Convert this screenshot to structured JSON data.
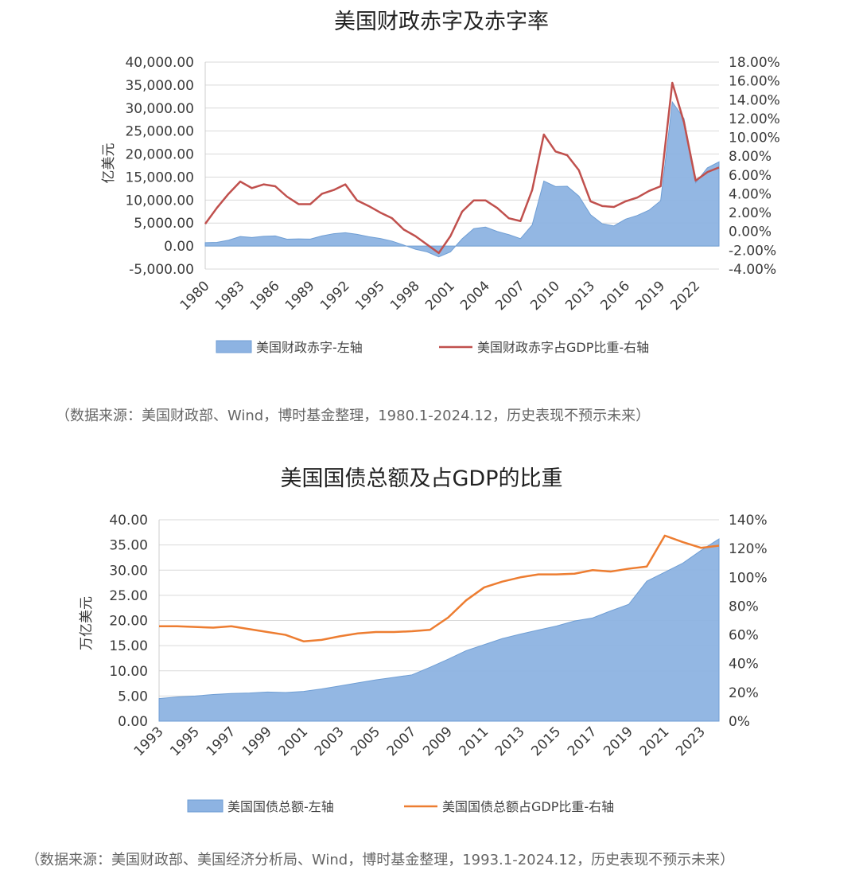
{
  "chart_data": [
    {
      "type": "area",
      "title": "美国财政赤字及赤字率",
      "ylabel": "亿美元",
      "y2label": "",
      "ylim": [
        -5000,
        40000
      ],
      "y2lim": [
        -4,
        18
      ],
      "yticks": [
        "40,000.00",
        "35,000.00",
        "30,000.00",
        "25,000.00",
        "20,000.00",
        "15,000.00",
        "10,000.00",
        "5,000.00",
        "0.00",
        "-5,000.00"
      ],
      "y2ticks": [
        "18.00%",
        "16.00%",
        "14.00%",
        "12.00%",
        "10.00%",
        "8.00%",
        "6.00%",
        "4.00%",
        "2.00%",
        "0.00%",
        "-2.00%",
        "-4.00%"
      ],
      "xtick_labels": [
        "1980",
        "1983",
        "1986",
        "1989",
        "1992",
        "1995",
        "1998",
        "2001",
        "2004",
        "2007",
        "2010",
        "2013",
        "2016",
        "2019",
        "2022"
      ],
      "x": [
        1980,
        1981,
        1982,
        1983,
        1984,
        1985,
        1986,
        1987,
        1988,
        1989,
        1990,
        1991,
        1992,
        1993,
        1994,
        1995,
        1996,
        1997,
        1998,
        1999,
        2000,
        2001,
        2002,
        2003,
        2004,
        2005,
        2006,
        2007,
        2008,
        2009,
        2010,
        2011,
        2012,
        2013,
        2014,
        2015,
        2016,
        2017,
        2018,
        2019,
        2020,
        2021,
        2022,
        2023,
        2024
      ],
      "series": [
        {
          "name": "美国财政赤字-左轴",
          "kind": "area",
          "axis": "left",
          "color": "#8db3e2",
          "values": [
            740,
            790,
            1280,
            2080,
            1850,
            2120,
            2210,
            1500,
            1550,
            1520,
            2210,
            2690,
            2900,
            2550,
            2030,
            1640,
            1070,
            220,
            -690,
            -1260,
            -2360,
            -1280,
            1580,
            3780,
            4130,
            3180,
            2480,
            1610,
            4590,
            14130,
            12940,
            12990,
            10870,
            6800,
            4850,
            4380,
            5850,
            6650,
            7790,
            9840,
            31320,
            27720,
            13760,
            17000,
            18300
          ]
        },
        {
          "name": "美国财政赤字占GDP比重-右轴",
          "kind": "line",
          "axis": "right",
          "color": "#c0504d",
          "values": [
            0.8,
            2.5,
            4.0,
            5.3,
            4.6,
            5.0,
            4.8,
            3.7,
            2.9,
            2.9,
            4.0,
            4.4,
            5.0,
            3.3,
            2.7,
            2.0,
            1.4,
            0.2,
            -0.5,
            -1.4,
            -2.3,
            -0.5,
            2.1,
            3.3,
            3.3,
            2.5,
            1.4,
            1.1,
            4.4,
            10.3,
            8.5,
            8.1,
            6.5,
            3.2,
            2.7,
            2.6,
            3.2,
            3.6,
            4.3,
            4.8,
            15.8,
            11.6,
            5.4,
            6.3,
            6.8
          ]
        }
      ],
      "source": "（数据来源：美国财政部、Wind，博时基金整理，1980.1-2024.12，历史表现不预示未来）"
    },
    {
      "type": "area",
      "title": "美国国债总额及占GDP的比重",
      "ylabel": "万亿美元",
      "y2label": "",
      "ylim": [
        0,
        40
      ],
      "y2lim": [
        0,
        140
      ],
      "yticks": [
        "40.00",
        "35.00",
        "30.00",
        "25.00",
        "20.00",
        "15.00",
        "10.00",
        "5.00",
        "0.00"
      ],
      "y2ticks": [
        "140%",
        "120%",
        "100%",
        "80%",
        "60%",
        "40%",
        "20%",
        "0%"
      ],
      "xtick_labels": [
        "1993",
        "1995",
        "1997",
        "1999",
        "2001",
        "2003",
        "2005",
        "2007",
        "2009",
        "2011",
        "2013",
        "2015",
        "2017",
        "2019",
        "2021",
        "2023"
      ],
      "x": [
        1993,
        1994,
        1995,
        1996,
        1997,
        1998,
        1999,
        2000,
        2001,
        2002,
        2003,
        2004,
        2005,
        2006,
        2007,
        2008,
        2009,
        2010,
        2011,
        2012,
        2013,
        2014,
        2015,
        2016,
        2017,
        2018,
        2019,
        2020,
        2021,
        2022,
        2023,
        2024
      ],
      "series": [
        {
          "name": "美国国债总额-左轴",
          "kind": "area",
          "axis": "left",
          "color": "#8db3e2",
          "values": [
            4.5,
            4.8,
            5.0,
            5.3,
            5.5,
            5.6,
            5.8,
            5.7,
            5.9,
            6.4,
            7.0,
            7.6,
            8.2,
            8.7,
            9.2,
            10.7,
            12.3,
            14.0,
            15.2,
            16.4,
            17.3,
            18.1,
            18.9,
            19.9,
            20.5,
            21.9,
            23.2,
            27.8,
            29.6,
            31.4,
            33.9,
            36.2
          ]
        },
        {
          "name": "美国国债总额占GDP比重-右轴",
          "kind": "line",
          "axis": "right",
          "color": "#ed7d31",
          "values": [
            66,
            66,
            65.5,
            65,
            66,
            64,
            62,
            60,
            55.5,
            56.5,
            59,
            61,
            62,
            62,
            62.5,
            63.5,
            72,
            84,
            93,
            97,
            100,
            102,
            102,
            102.5,
            105,
            104,
            106,
            107.5,
            129,
            124.5,
            120.5,
            122
          ]
        }
      ],
      "source": "（数据来源：美国财政部、美国经济分析局、Wind，博时基金整理，1993.1-2024.12，历史表现不预示未来）"
    }
  ]
}
